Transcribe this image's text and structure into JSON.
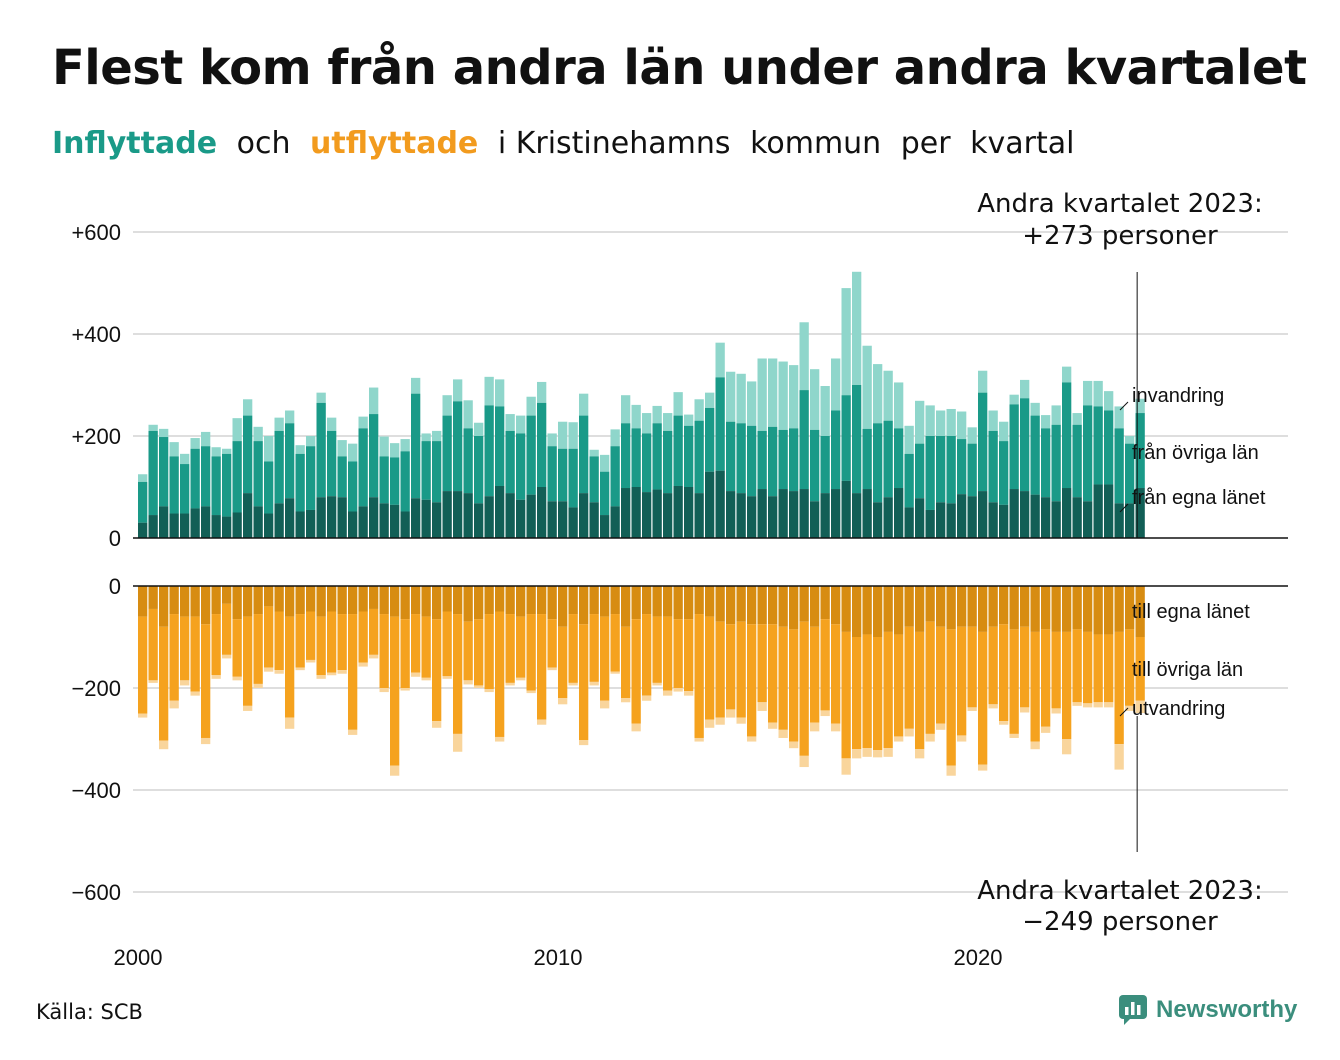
{
  "title": "Flest kom från andra län under andra kvartalet",
  "subtitle": {
    "part1": "Inflyttade",
    "part2": "och",
    "part3": "utflyttade",
    "part4": "i Kristinehamns",
    "part5": "kommun",
    "part6": "per",
    "part7": "kvartal"
  },
  "source": "Källa: SCB",
  "brand": "Newsworthy",
  "colors": {
    "in_local": "#125f56",
    "in_other": "#1a9a88",
    "in_immig": "#8fd6cb",
    "out_local": "#d78c12",
    "out_other": "#f5a21e",
    "out_emig": "#f9d59c",
    "grid": "#dedede",
    "text": "#111111"
  },
  "chart_data": {
    "type": "bar",
    "stacked": true,
    "x_start": "2000 Q1",
    "x_end": "2023 Q2",
    "xticks": [
      "2000",
      "2010",
      "2020"
    ],
    "yticks_top": [
      "+600",
      "+400",
      "+200",
      "0"
    ],
    "yticks_bottom": [
      "0",
      "−200",
      "−400",
      "−600"
    ],
    "ylim_top": [
      0,
      600
    ],
    "ylim_bottom": [
      -600,
      0
    ],
    "grid": true,
    "annotation_top": {
      "line1": "Andra kvartalet 2023:",
      "line2": "+273 personer"
    },
    "annotation_bottom": {
      "line1": "Andra kvartalet 2023:",
      "line2": "−249 personer"
    },
    "legend_in": [
      "invandring",
      "från övriga län",
      "från egna länet"
    ],
    "legend_out": [
      "till egna länet",
      "till övriga län",
      "utvandring"
    ],
    "inflyttade": {
      "totals": [
        125,
        222,
        214,
        188,
        165,
        196,
        208,
        178,
        175,
        235,
        272,
        218,
        200,
        236,
        250,
        182,
        200,
        285,
        236,
        192,
        185,
        238,
        295,
        199,
        186,
        194,
        314,
        205,
        210,
        280,
        311,
        270,
        226,
        316,
        311,
        243,
        240,
        277,
        306,
        205,
        228,
        227,
        283,
        173,
        163,
        213,
        280,
        261,
        245,
        259,
        245,
        286,
        242,
        272,
        285,
        383,
        326,
        322,
        307,
        352,
        352,
        346,
        339,
        423,
        331,
        298,
        352,
        490,
        522,
        377,
        341,
        328,
        305,
        220,
        269,
        260,
        250,
        253,
        248,
        217,
        328,
        250,
        228,
        281,
        310,
        265,
        241,
        260,
        336,
        245,
        308,
        308,
        288,
        258,
        200,
        273
      ],
      "from_other_lan": [
        110,
        210,
        198,
        160,
        145,
        175,
        180,
        160,
        165,
        190,
        240,
        190,
        150,
        210,
        225,
        165,
        180,
        265,
        210,
        160,
        150,
        215,
        243,
        160,
        158,
        170,
        283,
        190,
        190,
        240,
        268,
        215,
        200,
        260,
        258,
        210,
        205,
        240,
        265,
        180,
        175,
        175,
        240,
        160,
        130,
        180,
        225,
        215,
        205,
        225,
        210,
        240,
        220,
        230,
        255,
        315,
        228,
        225,
        220,
        210,
        218,
        212,
        215,
        290,
        212,
        200,
        250,
        280,
        300,
        214,
        225,
        230,
        215,
        165,
        185,
        200,
        200,
        200,
        194,
        185,
        285,
        210,
        190,
        262,
        274,
        240,
        215,
        222,
        305,
        222,
        260,
        258,
        250,
        215,
        185,
        245
      ],
      "from_local": [
        30,
        45,
        62,
        48,
        48,
        58,
        62,
        45,
        42,
        50,
        88,
        62,
        48,
        68,
        78,
        52,
        55,
        80,
        82,
        80,
        52,
        62,
        80,
        68,
        65,
        52,
        78,
        75,
        70,
        92,
        92,
        88,
        68,
        82,
        102,
        88,
        75,
        85,
        100,
        72,
        72,
        60,
        88,
        70,
        45,
        62,
        98,
        100,
        90,
        95,
        88,
        102,
        100,
        88,
        130,
        132,
        92,
        88,
        82,
        96,
        82,
        96,
        92,
        96,
        72,
        88,
        96,
        112,
        88,
        96,
        70,
        80,
        98,
        60,
        78,
        55,
        70,
        68,
        86,
        82,
        92,
        70,
        65,
        96,
        92,
        85,
        80,
        72,
        98,
        80,
        72,
        105,
        105,
        68,
        68,
        98
      ]
    },
    "utflyttade": {
      "totals": [
        258,
        190,
        320,
        240,
        195,
        215,
        310,
        182,
        142,
        185,
        245,
        200,
        168,
        172,
        280,
        165,
        150,
        182,
        175,
        172,
        292,
        158,
        142,
        208,
        372,
        205,
        178,
        185,
        278,
        182,
        325,
        193,
        200,
        208,
        305,
        195,
        185,
        210,
        272,
        165,
        232,
        195,
        312,
        195,
        240,
        172,
        228,
        285,
        225,
        195,
        215,
        207,
        215,
        305,
        278,
        272,
        258,
        270,
        305,
        245,
        280,
        298,
        318,
        355,
        285,
        255,
        285,
        370,
        338,
        335,
        336,
        335,
        305,
        295,
        338,
        305,
        282,
        372,
        305,
        245,
        362,
        240,
        272,
        298,
        248,
        320,
        288,
        250,
        330,
        235,
        238,
        238,
        238,
        360,
        245,
        249
      ],
      "to_other_lan": [
        250,
        185,
        303,
        225,
        185,
        207,
        298,
        175,
        135,
        178,
        235,
        192,
        160,
        165,
        258,
        160,
        145,
        175,
        170,
        165,
        282,
        150,
        135,
        200,
        352,
        200,
        170,
        180,
        265,
        177,
        290,
        185,
        195,
        202,
        296,
        190,
        180,
        205,
        262,
        160,
        220,
        190,
        302,
        188,
        225,
        168,
        220,
        270,
        215,
        190,
        205,
        200,
        206,
        298,
        262,
        258,
        242,
        258,
        295,
        228,
        268,
        282,
        305,
        333,
        268,
        244,
        270,
        338,
        320,
        318,
        322,
        318,
        295,
        280,
        320,
        290,
        270,
        352,
        293,
        238,
        350,
        232,
        265,
        290,
        238,
        305,
        276,
        240,
        300,
        228,
        230,
        228,
        228,
        310,
        235,
        225
      ],
      "to_local": [
        60,
        45,
        80,
        55,
        60,
        60,
        75,
        55,
        35,
        65,
        60,
        55,
        40,
        50,
        60,
        55,
        50,
        60,
        50,
        55,
        55,
        50,
        45,
        55,
        60,
        65,
        55,
        60,
        65,
        50,
        55,
        70,
        65,
        55,
        50,
        55,
        60,
        55,
        55,
        65,
        80,
        55,
        75,
        55,
        60,
        55,
        80,
        65,
        55,
        60,
        60,
        65,
        65,
        55,
        60,
        70,
        75,
        70,
        75,
        75,
        75,
        80,
        85,
        70,
        80,
        65,
        75,
        90,
        100,
        95,
        100,
        90,
        95,
        80,
        90,
        70,
        80,
        85,
        80,
        80,
        90,
        80,
        75,
        85,
        80,
        90,
        85,
        90,
        90,
        85,
        90,
        95,
        95,
        90,
        85,
        100
      ]
    }
  }
}
